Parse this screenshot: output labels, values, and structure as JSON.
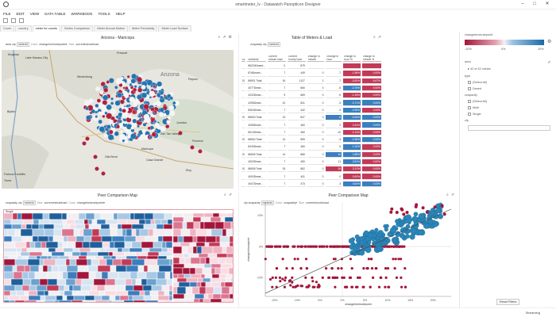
{
  "window": {
    "title": "smartmeter_lv - Datawatch Panopticon Designer"
  },
  "menu": [
    "FILE",
    "EDIT",
    "VIEW",
    "DATA TABLE",
    "WORKBOOK",
    "TOOLS",
    "HELP"
  ],
  "tabs": [
    "Cover",
    "country",
    "meter for counts",
    "Series Comparison",
    "Meter Annual Motion",
    "Meter Periodicity",
    "Meter Load Surface"
  ],
  "map_panel": {
    "title": "Arizona - Maricopa",
    "selectors": {
      "area": "area",
      "zip": "zip",
      "meterid": "meterid",
      "color_label": "Color",
      "color_value": "changeinminutepoint",
      "size_label": "Size",
      "size_value": "currentminuteload"
    },
    "state_label": "Arizona",
    "towns": [
      "Kingman",
      "Prescott",
      "Lake Havasu City",
      "Wickenburg",
      "Payson",
      "Blythe",
      "Junction",
      "San Tan Valley",
      "Maricopa",
      "Gila Bend",
      "Casa Grande",
      "Florence",
      "Eloy",
      "Yuma",
      "Fortuna Foothills"
    ]
  },
  "table_panel": {
    "title": "Table of Meters & Load",
    "selectors": {
      "zipcapacity": "zcapacity",
      "zip": "zip",
      "meterid": "meterid"
    },
    "columns": [
      "xc",
      "xmeterid",
      "current minute load",
      "current hourly load",
      "change in minute",
      "change in hour",
      "change in hour %",
      "change in minute %"
    ],
    "rows": [
      {
        "name": "86224Desert...",
        "v": [
          "0",
          "879",
          "",
          "",
          "",
          ""
        ],
        "c": [
          "",
          "",
          "",
          "",
          "r",
          "r"
        ]
      },
      {
        "name": "87dDesert...",
        "v": [
          "7",
          "449",
          "0",
          "-7",
          "-1.56%",
          "0.00%"
        ],
        "c": [
          "",
          "",
          "",
          "",
          "r",
          "r"
        ]
      },
      {
        "name": "86501 Total",
        "v": [
          "16",
          "1127",
          "1",
          "-7",
          "-0.62%",
          "6.67%"
        ],
        "c": [
          "",
          "",
          "",
          "",
          "r",
          "r"
        ]
      },
      {
        "name": "4077Deser...",
        "v": [
          "7",
          "660",
          "0",
          "-5",
          "-0.76%",
          "0.00%"
        ],
        "c": [
          "",
          "",
          "",
          "",
          "b",
          "r"
        ]
      },
      {
        "name": "4232Deser...",
        "v": [
          "9",
          "669",
          "0",
          "-9",
          "-1.33%",
          "0.00%"
        ],
        "c": [
          "",
          "",
          "",
          "",
          "r",
          "r"
        ]
      },
      {
        "name": "4296Deser...",
        "v": [
          "10",
          "841",
          "0",
          "-3",
          "-0.71%",
          "0.00%"
        ],
        "c": [
          "",
          "",
          "",
          "",
          "b",
          "b"
        ]
      },
      {
        "name": "8304Deser...",
        "v": [
          "7",
          "442",
          "0",
          "-4",
          "-0.90%",
          "0.00%"
        ],
        "c": [
          "",
          "",
          "",
          "",
          "b",
          "r"
        ]
      },
      {
        "name": "86503 Total",
        "v": [
          "13",
          "847",
          "0",
          "-8",
          "-0.94%",
          "0.00%"
        ],
        "c": [
          "",
          "",
          "",
          "b",
          "b",
          "b"
        ]
      },
      {
        "name": "4058Deser...",
        "v": [
          "7",
          "460",
          "0",
          "2",
          "0.44%",
          "0.00%"
        ],
        "c": [
          "",
          "",
          "",
          "",
          "r",
          "b"
        ]
      },
      {
        "name": "8010Deser...",
        "v": [
          "7",
          "460",
          "0",
          "-10",
          "-2.13%",
          "0.00%"
        ],
        "c": [
          "",
          "",
          "",
          "",
          "r",
          "r"
        ]
      },
      {
        "name": "86504 Total",
        "v": [
          "14",
          "859",
          "0",
          "-3",
          "-0.35%",
          "0.00%"
        ],
        "c": [
          "",
          "",
          "",
          "",
          "b",
          "b"
        ]
      },
      {
        "name": "8240Deser...",
        "v": [
          "7",
          "460",
          "0",
          "5",
          "1.10%",
          "0.00%"
        ],
        "c": [
          "",
          "",
          "",
          "",
          "b",
          "r"
        ]
      },
      {
        "name": "86505 Total",
        "v": [
          "14",
          "866",
          "0",
          "16",
          "1.88%",
          "0.00%"
        ],
        "c": [
          "",
          "",
          "",
          "b",
          "b",
          "r"
        ]
      },
      {
        "name": "4002Deser...",
        "v": [
          "7",
          "450",
          "0",
          "11",
          "2.51%",
          "0.00%"
        ],
        "c": [
          "",
          "",
          "",
          "",
          "b",
          "r"
        ]
      },
      {
        "name": "86508 Total",
        "v": [
          "15",
          "862",
          "0",
          "26",
          "3.12%",
          "0.00%"
        ],
        "c": [
          "",
          "",
          "",
          "r",
          "r",
          "r"
        ]
      },
      {
        "name": "4000Deser...",
        "v": [
          "7",
          "401",
          "0",
          "0",
          "0.00%",
          "0.00%"
        ],
        "c": [
          "",
          "",
          "",
          "",
          "r",
          "r"
        ]
      },
      {
        "name": "4047Deser...",
        "v": [
          "7",
          "473",
          "0",
          "3",
          "0.64%",
          "0.00%"
        ],
        "c": [
          "",
          "",
          "",
          "",
          "b",
          "b"
        ]
      },
      {
        "name": "4090Deser...",
        "v": [
          "8",
          "472",
          "1",
          "0",
          "0.00%",
          "14.29%"
        ],
        "c": [
          "",
          "",
          "",
          "",
          "b",
          "r"
        ]
      },
      {
        "name": "4093Deser...",
        "v": [
          "7",
          "473",
          "0",
          "0",
          "0.00%",
          "0.00%"
        ],
        "c": [
          "",
          "",
          "",
          "",
          "b",
          "b"
        ]
      },
      {
        "name": "4100Deser...",
        "v": [
          "7",
          "471",
          "0",
          "0",
          "0.00%",
          "0.00%"
        ],
        "c": [
          "",
          "",
          "",
          "",
          "b",
          "b"
        ]
      }
    ]
  },
  "heat_panel": {
    "title": "Peer Comparison Map",
    "selectors": {
      "zipcapacity": "zcapacity",
      "zip": "zip",
      "meterid": "meterid",
      "size_label": "Size",
      "size_value": "currentminuteload",
      "color_label": "Color",
      "color_value": "changeinminutepoint"
    },
    "group_labels": [
      "Single",
      "Multi"
    ]
  },
  "scatter_panel": {
    "title": "Peer Comparison Map",
    "selectors": {
      "zip": "zip",
      "zipcapacity": "zcapacity",
      "meterid": "meterid",
      "color_label": "Color",
      "color_value": "zcapacity",
      "size_label": "Size",
      "size_value": "currentminuteload"
    },
    "xlabel": "changeinminutepoint",
    "ylabel": "changeinhourpoint",
    "x_ticks": [
      "-15%",
      "-10%",
      "-5%",
      "0%",
      "5%",
      "10%",
      "15%",
      "20%"
    ],
    "y_ticks": [
      "10%",
      "0%",
      "-10%"
    ]
  },
  "chart_data": {
    "type": "scatter",
    "xlabel": "changeinminutepoint",
    "ylabel": "changeinhourpoint",
    "xlim": [
      -0.17,
      0.24
    ],
    "ylim": [
      -0.16,
      0.14
    ],
    "trend_line": {
      "from": [
        -0.17,
        -0.15
      ],
      "to": [
        0.24,
        0.12
      ]
    },
    "series": [
      {
        "name": "Single",
        "color": "#a3163a"
      },
      {
        "name": "Multi",
        "color": "#2a86b8"
      }
    ]
  },
  "right_panel": {
    "legend_label": "changeinminutepoint",
    "legend_ticks": [
      "-10%",
      "0%",
      "10%"
    ],
    "area_header": "area",
    "area_count": "42 of 42 values",
    "type_header": "type",
    "type_items": [
      "(Select All)",
      "Desert"
    ],
    "zcap_header": "zcapacity",
    "zcap_items": [
      "(Select All)",
      "Multi",
      "Single"
    ],
    "zip_header": "zip",
    "reset_label": "Reset Filters"
  },
  "status": {
    "text": "Streaming"
  },
  "colors": {
    "red": "#b2203f",
    "blue": "#2574b0",
    "accent": "#a3163a"
  }
}
